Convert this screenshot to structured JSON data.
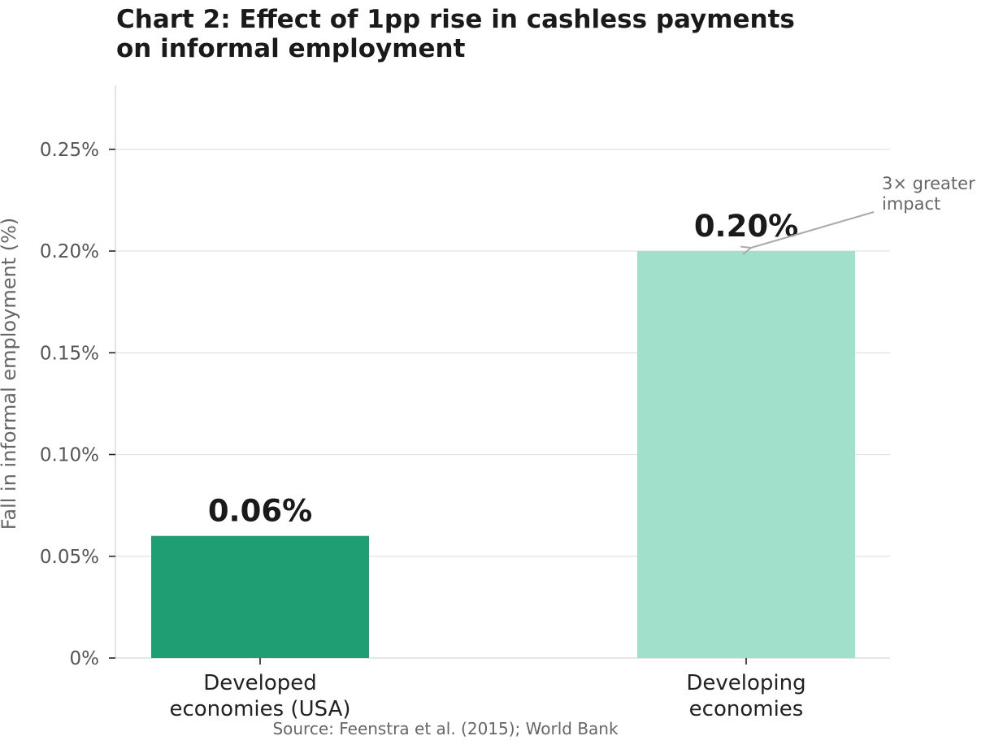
{
  "chart_data": {
    "type": "bar",
    "title_lines": [
      "Chart 2: Effect of 1pp rise in cashless payments",
      "on informal employment"
    ],
    "ylabel": "Fall in informal employment (%)",
    "xlabel": "",
    "categories": [
      [
        "Developed",
        "economies (USA)"
      ],
      [
        "Developing",
        "economies"
      ]
    ],
    "values": [
      0.06,
      0.2
    ],
    "value_labels": [
      "0.06%",
      "0.20%"
    ],
    "colors": [
      "#1f9e74",
      "#a1e1cb"
    ],
    "ylim": [
      0,
      0.28
    ],
    "yticks": [
      0,
      0.05,
      0.1,
      0.15,
      0.2,
      0.25
    ],
    "ytick_labels": [
      "0%",
      "0.05%",
      "0.10%",
      "0.15%",
      "0.20%",
      "0.25%"
    ],
    "grid": true,
    "annotation": {
      "lines": [
        "3× greater",
        "impact"
      ],
      "target_category_index": 1
    },
    "source": "Source: Feenstra et al. (2015); World Bank"
  }
}
